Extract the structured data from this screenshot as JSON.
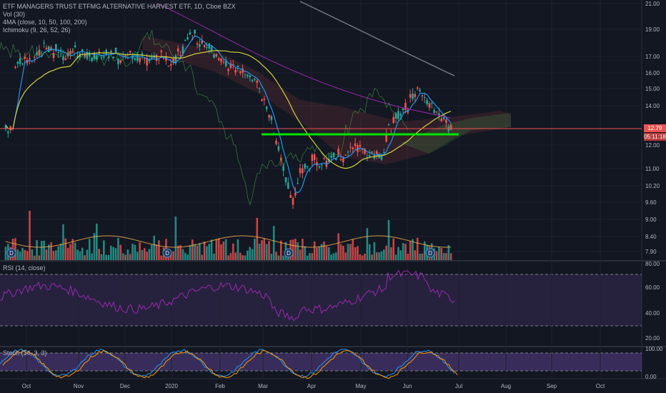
{
  "legend": {
    "symbol_line": "ETF MANAGERS TRUST ETFMG ALTERNATIVE HARVEST ETF, 1D, Cboe BZX",
    "vol_line": "Vol (30)",
    "ma_line": "4MA (close, 10, 50, 100, 200)",
    "ichimoku_line": "Ichimoku (9, 26, 52, 26)"
  },
  "rsi_pane": {
    "title": "RSI (14, close)",
    "ticks": [
      "80.00",
      "60.00",
      "40.00",
      "20.00"
    ]
  },
  "stoch_pane": {
    "title": "Stoch (14, 3, 3)",
    "ticks": [
      "100.00",
      "0.00"
    ]
  },
  "price_axis": {
    "ticks": [
      "21.00",
      "19.00",
      "17.00",
      "16.00",
      "15.00",
      "14.00",
      "12.00",
      "11.00",
      "10.20",
      "9.60",
      "9.00",
      "8.40",
      "7.90"
    ],
    "last_price": "12.79",
    "countdown": "05:11:18"
  },
  "time_axis": {
    "labels": [
      "Oct",
      "Nov",
      "Dec",
      "2020",
      "Feb",
      "Mar",
      "Apr",
      "May",
      "Jun",
      "Jul",
      "Aug",
      "Sep",
      "Oct"
    ]
  },
  "event_markers": {
    "label": "D"
  },
  "colors": {
    "up": "#26a69a",
    "down": "#ef5350",
    "ma_fast": "#2196f3",
    "ma_mid": "#d4d03a",
    "ma_slow": "#787b86",
    "support_line": "#00e600",
    "price_line": "#ef5350",
    "rsi_line": "#9c27b0",
    "stoch_k": "#2196f3",
    "stoch_d": "#ff9800"
  },
  "chart_data": {
    "type": "candlestick",
    "support_level": 12.5,
    "last_price": 12.79,
    "price_range": [
      7.6,
      21.2
    ]
  }
}
